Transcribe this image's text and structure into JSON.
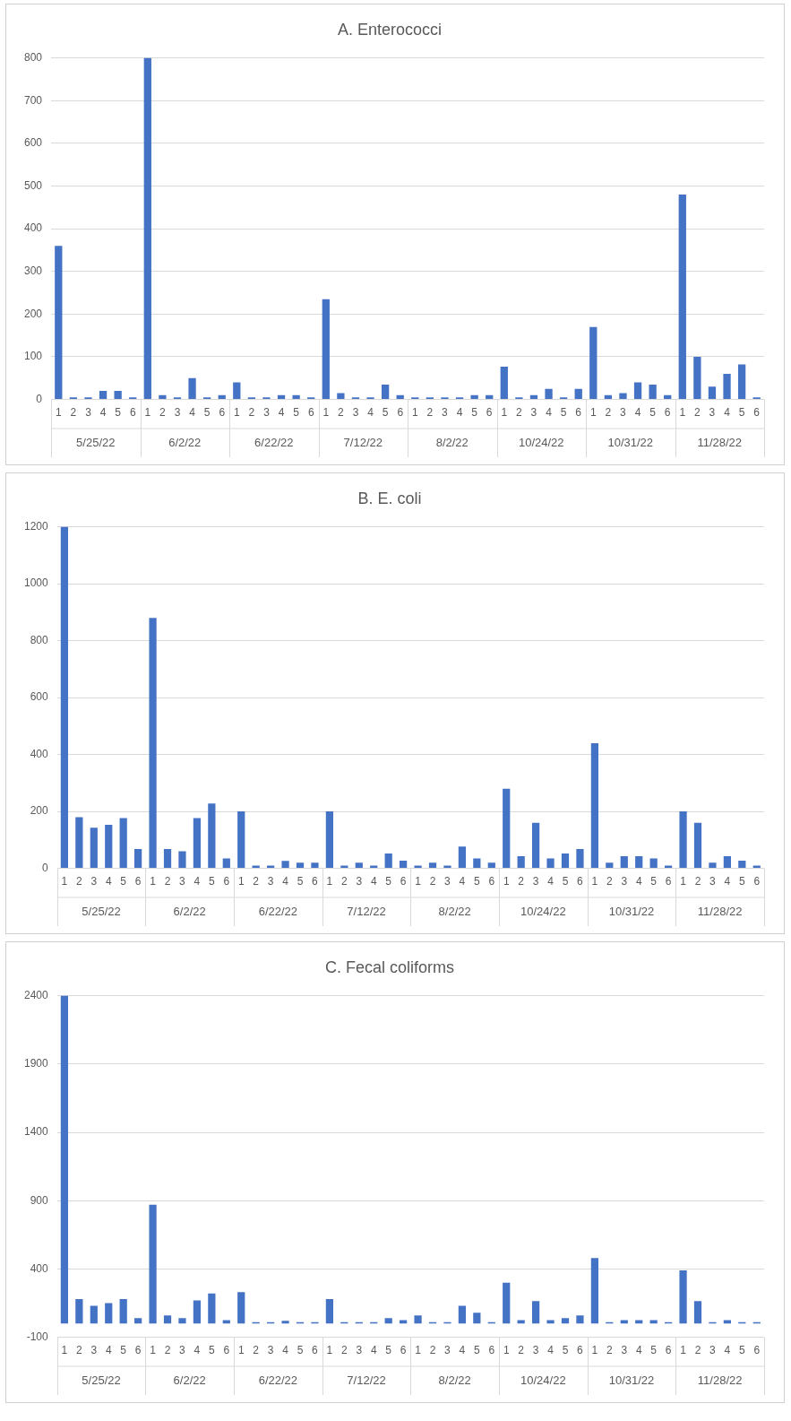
{
  "chart_data": [
    {
      "type": "bar",
      "title": "A. Enterococci",
      "categories": [
        "1",
        "2",
        "3",
        "4",
        "5",
        "6",
        "1",
        "2",
        "3",
        "4",
        "5",
        "6",
        "1",
        "2",
        "3",
        "4",
        "5",
        "6",
        "1",
        "2",
        "3",
        "4",
        "5",
        "6",
        "1",
        "2",
        "3",
        "4",
        "5",
        "6",
        "1",
        "2",
        "3",
        "4",
        "5",
        "6",
        "1",
        "2",
        "3",
        "4",
        "5",
        "6",
        "1",
        "2",
        "3",
        "4",
        "5",
        "6"
      ],
      "values": [
        360,
        5,
        5,
        20,
        20,
        5,
        800,
        10,
        5,
        50,
        5,
        10,
        40,
        5,
        5,
        10,
        10,
        5,
        235,
        15,
        5,
        5,
        35,
        10,
        5,
        5,
        5,
        5,
        10,
        10,
        77,
        5,
        10,
        25,
        5,
        25,
        170,
        10,
        15,
        40,
        35,
        10,
        480,
        100,
        30,
        60,
        82,
        5
      ],
      "color": "#4472c4",
      "annotations": [
        "5/25/22",
        "6/2/22",
        "6/22/22",
        "7/12/22",
        "8/2/22",
        "10/24/22",
        "10/31/22",
        "11/28/22"
      ],
      "ylim": [
        0,
        800
      ],
      "yticks": [
        0,
        100,
        200,
        300,
        400,
        500,
        600,
        700,
        800
      ],
      "grid": "y",
      "legend": false
    },
    {
      "type": "bar",
      "title": "B. E. coli",
      "categories": [
        "1",
        "2",
        "3",
        "4",
        "5",
        "6",
        "1",
        "2",
        "3",
        "4",
        "5",
        "6",
        "1",
        "2",
        "3",
        "4",
        "5",
        "6",
        "1",
        "2",
        "3",
        "4",
        "5",
        "6",
        "1",
        "2",
        "3",
        "4",
        "5",
        "6",
        "1",
        "2",
        "3",
        "4",
        "5",
        "6",
        "1",
        "2",
        "3",
        "4",
        "5",
        "6",
        "1",
        "2",
        "3",
        "4",
        "5",
        "6"
      ],
      "values": [
        1200,
        180,
        143,
        153,
        177,
        68,
        880,
        68,
        60,
        177,
        228,
        35,
        200,
        10,
        10,
        26,
        20,
        20,
        200,
        10,
        20,
        10,
        52,
        27,
        10,
        20,
        10,
        77,
        35,
        20,
        280,
        43,
        160,
        35,
        52,
        68,
        440,
        20,
        43,
        43,
        35,
        10,
        200,
        160,
        20,
        43,
        27,
        10
      ],
      "color": "#4472c4",
      "annotations": [
        "5/25/22",
        "6/2/22",
        "6/22/22",
        "7/12/22",
        "8/2/22",
        "10/24/22",
        "10/31/22",
        "11/28/22"
      ],
      "ylim": [
        0,
        1200
      ],
      "yticks": [
        0,
        200,
        400,
        600,
        800,
        1000,
        1200
      ],
      "grid": "y",
      "legend": false
    },
    {
      "type": "bar",
      "title": "C. Fecal coliforms",
      "categories": [
        "1",
        "2",
        "3",
        "4",
        "5",
        "6",
        "1",
        "2",
        "3",
        "4",
        "5",
        "6",
        "1",
        "2",
        "3",
        "4",
        "5",
        "6",
        "1",
        "2",
        "3",
        "4",
        "5",
        "6",
        "1",
        "2",
        "3",
        "4",
        "5",
        "6",
        "1",
        "2",
        "3",
        "4",
        "5",
        "6",
        "1",
        "2",
        "3",
        "4",
        "5",
        "6",
        "1",
        "2",
        "3",
        "4",
        "5",
        "6"
      ],
      "values": [
        2400,
        180,
        130,
        150,
        180,
        40,
        870,
        60,
        40,
        170,
        220,
        25,
        230,
        10,
        10,
        20,
        10,
        10,
        180,
        10,
        10,
        10,
        40,
        25,
        60,
        10,
        10,
        130,
        80,
        10,
        300,
        25,
        165,
        25,
        40,
        60,
        480,
        10,
        25,
        25,
        25,
        10,
        390,
        165,
        10,
        25,
        10,
        10
      ],
      "color": "#4472c4",
      "annotations": [
        "5/25/22",
        "6/2/22",
        "6/22/22",
        "7/12/22",
        "8/2/22",
        "10/24/22",
        "10/31/22",
        "11/28/22"
      ],
      "ylim": [
        -100,
        2400
      ],
      "yticks": [
        -100,
        400,
        900,
        1400,
        1900,
        2400
      ],
      "grid": "y",
      "legend": false
    }
  ]
}
